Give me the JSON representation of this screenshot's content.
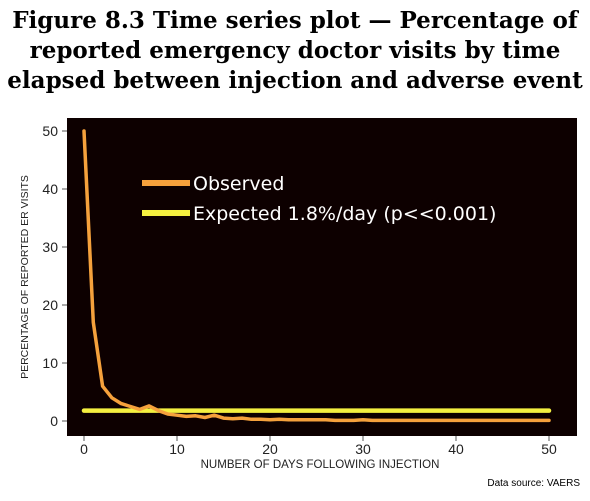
{
  "figure": {
    "title_lines": [
      "Figure 8.3  Time series plot — Percentage of",
      "reported emergency doctor visits by time",
      "elapsed between injection and adverse event"
    ],
    "source": "Data source: VAERS"
  },
  "chart_data": {
    "type": "line",
    "xlabel": "NUMBER OF DAYS FOLLOWING INJECTION",
    "ylabel": "PERCENTAGE OF REPORTED ER VISITS",
    "xlim": [
      0,
      50
    ],
    "ylim": [
      0,
      50
    ],
    "xticks": [
      0,
      10,
      20,
      30,
      40,
      50
    ],
    "yticks": [
      0,
      10,
      20,
      30,
      40,
      50
    ],
    "grid": false,
    "legend_position": "top-center",
    "background": "#0d0000",
    "series": [
      {
        "name": "Observed",
        "color": "#f5a13c",
        "x": [
          0,
          1,
          2,
          3,
          4,
          5,
          6,
          7,
          8,
          9,
          10,
          11,
          12,
          13,
          14,
          15,
          16,
          17,
          18,
          19,
          20,
          21,
          22,
          23,
          24,
          25,
          26,
          27,
          28,
          29,
          30,
          31,
          32,
          33,
          34,
          35,
          36,
          37,
          38,
          39,
          40,
          41,
          42,
          43,
          44,
          45,
          46,
          47,
          48,
          49,
          50
        ],
        "y": [
          50,
          17,
          6,
          4,
          3,
          2.5,
          2,
          2.6,
          1.8,
          1.2,
          1,
          0.8,
          0.9,
          0.6,
          1,
          0.5,
          0.4,
          0.5,
          0.3,
          0.3,
          0.2,
          0.3,
          0.2,
          0.2,
          0.2,
          0.2,
          0.2,
          0.1,
          0.1,
          0.1,
          0.2,
          0.1,
          0.1,
          0.1,
          0.1,
          0.1,
          0.1,
          0.1,
          0.1,
          0.1,
          0.1,
          0.1,
          0.1,
          0.1,
          0.1,
          0.1,
          0.1,
          0.1,
          0.1,
          0.1,
          0.1
        ]
      },
      {
        "name": "Expected 1.8%/day (p<<0.001)",
        "color": "#f4f040",
        "x": [
          0,
          50
        ],
        "y": [
          1.8,
          1.8
        ]
      }
    ]
  }
}
